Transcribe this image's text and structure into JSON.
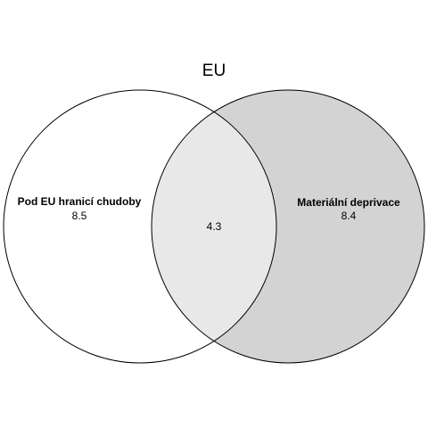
{
  "title": "EU",
  "sets": [
    {
      "name": "Pod EU hranicí chudoby",
      "value": "8.5",
      "fill": "#ffffff"
    },
    {
      "name": "Materiální deprivace",
      "value": "8.4",
      "fill": "#d3d3d3"
    }
  ],
  "intersection": {
    "value": "4.3",
    "fill": "#e8e8e8"
  },
  "stroke_color": "#000000"
}
